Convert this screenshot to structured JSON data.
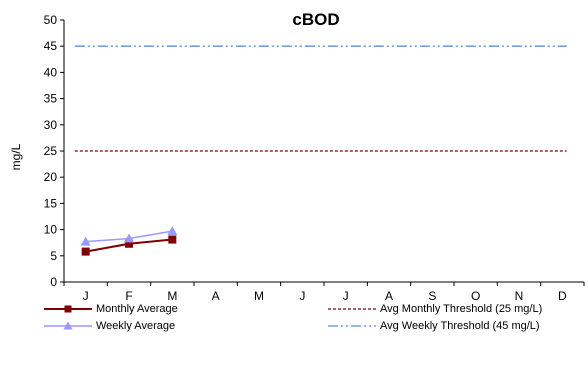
{
  "chart_data": {
    "type": "line",
    "title": "cBOD",
    "xlabel": "",
    "ylabel": "mg/L",
    "categories": [
      "J",
      "F",
      "M",
      "A",
      "M",
      "J",
      "J",
      "A",
      "S",
      "O",
      "N",
      "D"
    ],
    "ylim": [
      0,
      50
    ],
    "yticks": [
      0,
      5,
      10,
      15,
      20,
      25,
      30,
      35,
      40,
      45,
      50
    ],
    "grid": false,
    "legend_position": "bottom",
    "series": [
      {
        "name": "Monthly Average",
        "values": [
          5.8,
          7.3,
          8.1,
          null,
          null,
          null,
          null,
          null,
          null,
          null,
          null,
          null
        ],
        "color": "#800000",
        "marker": "square"
      },
      {
        "name": "Weekly Average",
        "values": [
          7.7,
          8.3,
          9.7,
          null,
          null,
          null,
          null,
          null,
          null,
          null,
          null,
          null
        ],
        "color": "#9999FF",
        "marker": "triangle"
      },
      {
        "name": "Avg Monthly Threshold (25 mg/L)",
        "constant": 25,
        "color": "#800000",
        "style": "dashed"
      },
      {
        "name": "Avg Weekly Threshold (45 mg/L)",
        "constant": 45,
        "color": "#5B8ED6",
        "style": "dash-dot-dot"
      }
    ]
  }
}
